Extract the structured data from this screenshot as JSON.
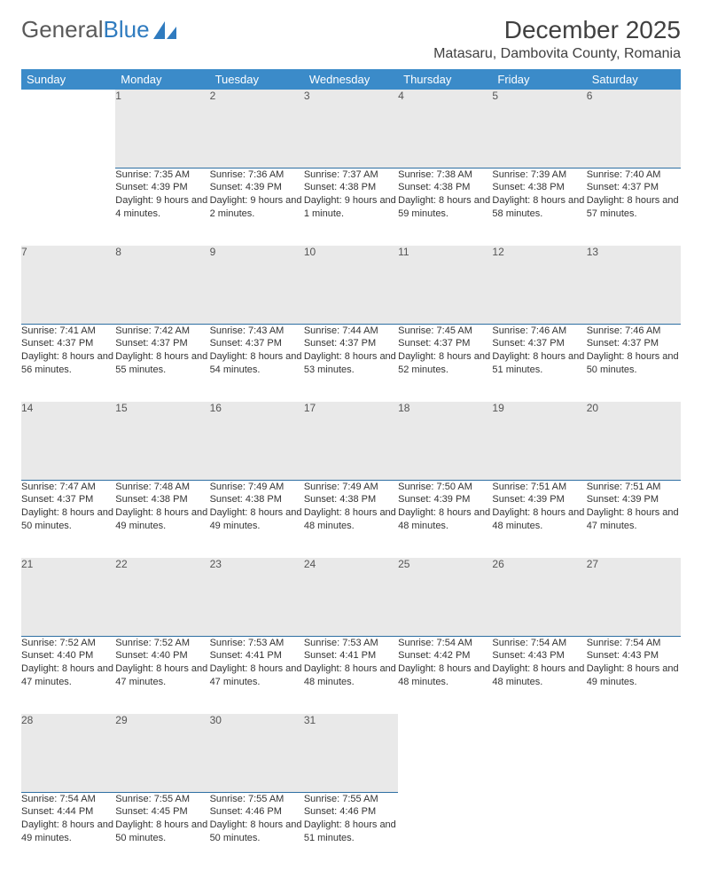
{
  "brand": {
    "part1": "General",
    "part2": "Blue"
  },
  "title": "December 2025",
  "location": "Matasaru, Dambovita County, Romania",
  "colors": {
    "header_bg": "#3b8bc9",
    "header_fg": "#ffffff",
    "daynum_bg": "#e9e9e9",
    "daynum_border": "#2f6fa3",
    "text": "#333333",
    "brand_gray": "#5a5a5a",
    "brand_blue": "#2f7bbf"
  },
  "day_headers": [
    "Sunday",
    "Monday",
    "Tuesday",
    "Wednesday",
    "Thursday",
    "Friday",
    "Saturday"
  ],
  "weeks": [
    {
      "nums": [
        "",
        "1",
        "2",
        "3",
        "4",
        "5",
        "6"
      ],
      "cells": [
        "",
        "Sunrise: 7:35 AM\nSunset: 4:39 PM\nDaylight: 9 hours and 4 minutes.",
        "Sunrise: 7:36 AM\nSunset: 4:39 PM\nDaylight: 9 hours and 2 minutes.",
        "Sunrise: 7:37 AM\nSunset: 4:38 PM\nDaylight: 9 hours and 1 minute.",
        "Sunrise: 7:38 AM\nSunset: 4:38 PM\nDaylight: 8 hours and 59 minutes.",
        "Sunrise: 7:39 AM\nSunset: 4:38 PM\nDaylight: 8 hours and 58 minutes.",
        "Sunrise: 7:40 AM\nSunset: 4:37 PM\nDaylight: 8 hours and 57 minutes."
      ]
    },
    {
      "nums": [
        "7",
        "8",
        "9",
        "10",
        "11",
        "12",
        "13"
      ],
      "cells": [
        "Sunrise: 7:41 AM\nSunset: 4:37 PM\nDaylight: 8 hours and 56 minutes.",
        "Sunrise: 7:42 AM\nSunset: 4:37 PM\nDaylight: 8 hours and 55 minutes.",
        "Sunrise: 7:43 AM\nSunset: 4:37 PM\nDaylight: 8 hours and 54 minutes.",
        "Sunrise: 7:44 AM\nSunset: 4:37 PM\nDaylight: 8 hours and 53 minutes.",
        "Sunrise: 7:45 AM\nSunset: 4:37 PM\nDaylight: 8 hours and 52 minutes.",
        "Sunrise: 7:46 AM\nSunset: 4:37 PM\nDaylight: 8 hours and 51 minutes.",
        "Sunrise: 7:46 AM\nSunset: 4:37 PM\nDaylight: 8 hours and 50 minutes."
      ]
    },
    {
      "nums": [
        "14",
        "15",
        "16",
        "17",
        "18",
        "19",
        "20"
      ],
      "cells": [
        "Sunrise: 7:47 AM\nSunset: 4:37 PM\nDaylight: 8 hours and 50 minutes.",
        "Sunrise: 7:48 AM\nSunset: 4:38 PM\nDaylight: 8 hours and 49 minutes.",
        "Sunrise: 7:49 AM\nSunset: 4:38 PM\nDaylight: 8 hours and 49 minutes.",
        "Sunrise: 7:49 AM\nSunset: 4:38 PM\nDaylight: 8 hours and 48 minutes.",
        "Sunrise: 7:50 AM\nSunset: 4:39 PM\nDaylight: 8 hours and 48 minutes.",
        "Sunrise: 7:51 AM\nSunset: 4:39 PM\nDaylight: 8 hours and 48 minutes.",
        "Sunrise: 7:51 AM\nSunset: 4:39 PM\nDaylight: 8 hours and 47 minutes."
      ]
    },
    {
      "nums": [
        "21",
        "22",
        "23",
        "24",
        "25",
        "26",
        "27"
      ],
      "cells": [
        "Sunrise: 7:52 AM\nSunset: 4:40 PM\nDaylight: 8 hours and 47 minutes.",
        "Sunrise: 7:52 AM\nSunset: 4:40 PM\nDaylight: 8 hours and 47 minutes.",
        "Sunrise: 7:53 AM\nSunset: 4:41 PM\nDaylight: 8 hours and 47 minutes.",
        "Sunrise: 7:53 AM\nSunset: 4:41 PM\nDaylight: 8 hours and 48 minutes.",
        "Sunrise: 7:54 AM\nSunset: 4:42 PM\nDaylight: 8 hours and 48 minutes.",
        "Sunrise: 7:54 AM\nSunset: 4:43 PM\nDaylight: 8 hours and 48 minutes.",
        "Sunrise: 7:54 AM\nSunset: 4:43 PM\nDaylight: 8 hours and 49 minutes."
      ]
    },
    {
      "nums": [
        "28",
        "29",
        "30",
        "31",
        "",
        "",
        ""
      ],
      "cells": [
        "Sunrise: 7:54 AM\nSunset: 4:44 PM\nDaylight: 8 hours and 49 minutes.",
        "Sunrise: 7:55 AM\nSunset: 4:45 PM\nDaylight: 8 hours and 50 minutes.",
        "Sunrise: 7:55 AM\nSunset: 4:46 PM\nDaylight: 8 hours and 50 minutes.",
        "Sunrise: 7:55 AM\nSunset: 4:46 PM\nDaylight: 8 hours and 51 minutes.",
        "",
        "",
        ""
      ]
    }
  ]
}
